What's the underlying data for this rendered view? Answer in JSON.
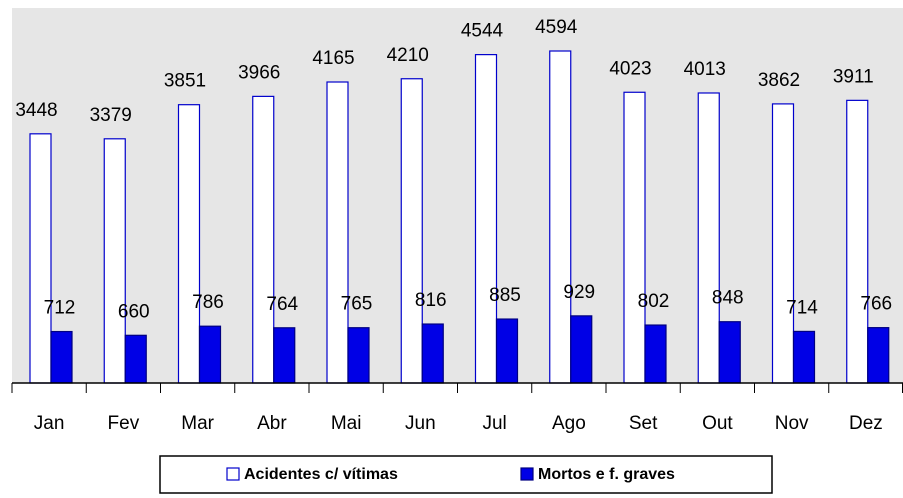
{
  "chart_data": {
    "type": "bar",
    "categories": [
      "Jan",
      "Fev",
      "Mar",
      "Abr",
      "Mai",
      "Jun",
      "Jul",
      "Ago",
      "Set",
      "Out",
      "Nov",
      "Dez"
    ],
    "series": [
      {
        "name": "Acidentes c/ vítimas",
        "color": "#ffffff",
        "values": [
          3448,
          3379,
          3851,
          3966,
          4165,
          4210,
          4544,
          4594,
          4023,
          4013,
          3862,
          3911
        ]
      },
      {
        "name": "Mortos e f. graves",
        "color": "#0000e6",
        "values": [
          712,
          660,
          786,
          764,
          765,
          816,
          885,
          929,
          802,
          848,
          714,
          766
        ]
      }
    ]
  }
}
